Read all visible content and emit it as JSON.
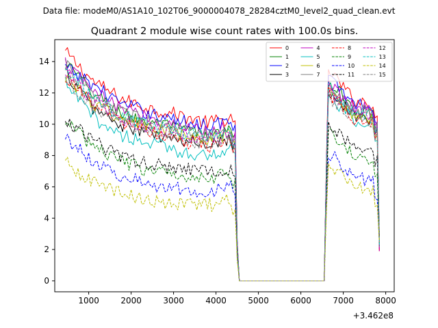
{
  "chart_data": {
    "type": "line",
    "suptitle": "Data file: modeM0/AS1A10_102T06_9000004078_28284cztM0_level2_quad_clean.evt",
    "title": "Quadrant 2 module wise count rates with 100.0s bins.",
    "xlabel": "",
    "ylabel": "",
    "x_offset_label": "+3.462e8",
    "xlim": [
      200,
      8200
    ],
    "ylim": [
      -0.7,
      15.4
    ],
    "xticks": [
      1000,
      2000,
      3000,
      4000,
      5000,
      6000,
      7000,
      8000
    ],
    "yticks": [
      0,
      2,
      4,
      6,
      8,
      10,
      12,
      14
    ],
    "legend_position": "top-right",
    "segments": [
      {
        "x_start": 450,
        "x_end": 4450
      },
      {
        "x_start": 6650,
        "x_end": 7800
      }
    ],
    "gap": {
      "x_start": 4550,
      "x_end": 6550,
      "value": 0
    },
    "step": 50,
    "series": [
      {
        "name": "0",
        "color": "#ff0000",
        "dash": false,
        "seg1": [
          14.6,
          12.7,
          11.6,
          11.0,
          10.6,
          10.1,
          10.4
        ],
        "seg2": [
          13.5,
          11.6,
          11.2
        ]
      },
      {
        "name": "1",
        "color": "#008000",
        "dash": false,
        "seg1": [
          14.0,
          11.9,
          10.7,
          10.1,
          9.7,
          9.3,
          9.6
        ],
        "seg2": [
          12.8,
          11.0,
          10.6
        ]
      },
      {
        "name": "2",
        "color": "#0000ff",
        "dash": false,
        "seg1": [
          13.6,
          12.5,
          11.3,
          10.7,
          10.2,
          10.0,
          10.2
        ],
        "seg2": [
          13.0,
          11.4,
          11.0
        ]
      },
      {
        "name": "3",
        "color": "#000000",
        "dash": false,
        "seg1": [
          13.3,
          11.0,
          9.9,
          9.4,
          8.9,
          8.8,
          9.2
        ],
        "seg2": [
          12.2,
          10.6,
          10.2
        ]
      },
      {
        "name": "4",
        "color": "#bf00bf",
        "dash": false,
        "seg1": [
          13.9,
          12.0,
          11.0,
          10.4,
          9.9,
          9.6,
          9.8
        ],
        "seg2": [
          12.6,
          11.2,
          10.8
        ]
      },
      {
        "name": "5",
        "color": "#00bfbf",
        "dash": false,
        "seg1": [
          12.6,
          10.4,
          9.3,
          8.8,
          8.3,
          8.0,
          8.5
        ],
        "seg2": [
          11.9,
          10.2,
          9.8
        ]
      },
      {
        "name": "6",
        "color": "#bfbf00",
        "dash": false,
        "seg1": [
          13.1,
          11.3,
          10.3,
          9.8,
          9.3,
          9.0,
          9.3
        ],
        "seg2": [
          12.0,
          10.7,
          10.2
        ]
      },
      {
        "name": "7",
        "color": "#808080",
        "dash": false,
        "seg1": [
          13.8,
          11.7,
          10.7,
          10.1,
          9.6,
          9.3,
          9.5
        ],
        "seg2": [
          12.4,
          11.0,
          10.5
        ]
      },
      {
        "name": "8",
        "color": "#ff0000",
        "dash": true,
        "seg1": [
          13.0,
          11.2,
          10.1,
          9.5,
          9.0,
          8.6,
          9.0
        ],
        "seg2": [
          12.0,
          10.4,
          10.0
        ]
      },
      {
        "name": "9",
        "color": "#008000",
        "dash": true,
        "seg1": [
          10.2,
          8.6,
          7.6,
          7.0,
          6.8,
          6.6,
          6.9
        ],
        "seg2": [
          9.6,
          8.0,
          7.6
        ]
      },
      {
        "name": "10",
        "color": "#0000ff",
        "dash": true,
        "seg1": [
          9.2,
          7.6,
          6.7,
          6.1,
          5.9,
          5.7,
          6.0
        ],
        "seg2": [
          8.2,
          6.8,
          6.2
        ]
      },
      {
        "name": "11",
        "color": "#000000",
        "dash": true,
        "seg1": [
          10.3,
          8.9,
          7.9,
          7.5,
          7.2,
          7.0,
          7.2
        ],
        "seg2": [
          10.0,
          8.6,
          8.3
        ]
      },
      {
        "name": "12",
        "color": "#bf00bf",
        "dash": true,
        "seg1": [
          13.2,
          11.4,
          10.4,
          9.8,
          9.4,
          9.1,
          9.3
        ],
        "seg2": [
          12.2,
          10.8,
          10.4
        ]
      },
      {
        "name": "13",
        "color": "#00bfbf",
        "dash": true,
        "seg1": [
          13.5,
          11.6,
          10.5,
          9.9,
          9.5,
          9.2,
          9.4
        ],
        "seg2": [
          12.4,
          10.9,
          10.5
        ]
      },
      {
        "name": "14",
        "color": "#bfbf00",
        "dash": true,
        "seg1": [
          7.6,
          6.2,
          5.6,
          5.1,
          4.9,
          4.8,
          5.2
        ],
        "seg2": [
          7.6,
          6.0,
          5.8
        ]
      },
      {
        "name": "15",
        "color": "#808080",
        "dash": true,
        "seg1": [
          12.9,
          11.1,
          10.1,
          9.6,
          9.1,
          8.8,
          9.1
        ],
        "seg2": [
          11.8,
          10.4,
          10.0
        ]
      }
    ]
  }
}
